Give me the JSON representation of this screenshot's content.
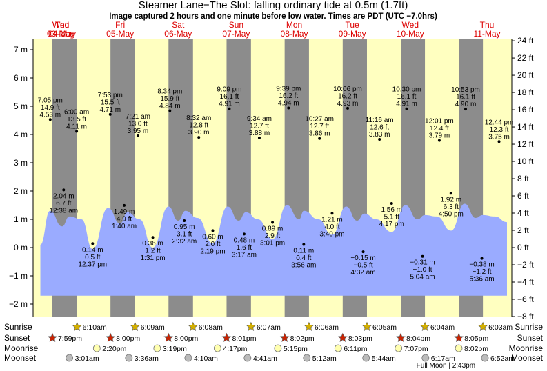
{
  "header": {
    "title": "Steamer Lane−The Slot: falling  ordinary tide at 0.5m (1.7ft)",
    "subtitle": "Image captured 2 hours and one minute before low water. Times are PDT (UTC −7.0hrs)"
  },
  "colors": {
    "day": "#ffffc0",
    "night": "#8c8c8c",
    "tide": "#9aabff",
    "date_red": "#dd0000",
    "sun": "#d4b000",
    "sunset": "#cc2200",
    "moonrise": "#ffffb0",
    "moonset": "#bbbbbb"
  },
  "chart_data": {
    "type": "area",
    "title": "Steamer Lane−The Slot: falling  ordinary tide at 0.5m (1.7ft)",
    "y_left_unit": "m",
    "y_right_unit": "ft",
    "ylim_m": [
      -2.2,
      7.4
    ],
    "yticks_left": [
      "−2 m",
      "−1 m",
      "0 m",
      "1 m",
      "2 m",
      "3 m",
      "4 m",
      "5 m",
      "6 m",
      "7 m"
    ],
    "yticks_right": [
      "−8 ft",
      "−6 ft",
      "−4 ft",
      "−2 ft",
      "0 ft",
      "2 ft",
      "4 ft",
      "6 ft",
      "8 ft",
      "10 ft",
      "12 ft",
      "14 ft",
      "16 ft",
      "18 ft",
      "20 ft",
      "22 ft",
      "24 ft"
    ],
    "x_start": "2025-05-03 12:00",
    "x_end": "2025-05-11 18:00",
    "days": [
      {
        "name": "Wed",
        "date": "03-May"
      },
      {
        "name": "Thu",
        "date": "04-May"
      },
      {
        "name": "Fri",
        "date": "05-May"
      },
      {
        "name": "Sat",
        "date": "06-May"
      },
      {
        "name": "Sun",
        "date": "07-May"
      },
      {
        "name": "Mon",
        "date": "08-May"
      },
      {
        "name": "Tue",
        "date": "09-May"
      },
      {
        "name": "Wed",
        "date": "10-May"
      },
      {
        "name": "Thu",
        "date": "11-May"
      }
    ],
    "nights": [
      {
        "start": "2025-05-03 19:59",
        "end": "2025-05-04 06:10"
      },
      {
        "start": "2025-05-04 20:00",
        "end": "2025-05-05 06:09"
      },
      {
        "start": "2025-05-05 20:00",
        "end": "2025-05-06 06:08"
      },
      {
        "start": "2025-05-06 20:01",
        "end": "2025-05-07 06:07"
      },
      {
        "start": "2025-05-07 20:02",
        "end": "2025-05-08 06:06"
      },
      {
        "start": "2025-05-08 20:03",
        "end": "2025-05-09 06:05"
      },
      {
        "start": "2025-05-09 20:04",
        "end": "2025-05-10 06:04"
      },
      {
        "start": "2025-05-10 20:05",
        "end": "2025-05-11 06:03"
      }
    ],
    "modeled_tide": [
      [
        "2025-05-03 15:00",
        0.1
      ],
      [
        "2025-05-03 19:00",
        1.3
      ],
      [
        "2025-05-04 00:00",
        0.75
      ],
      [
        "2025-05-04 03:00",
        1.1
      ],
      [
        "2025-05-04 08:00",
        1.0
      ],
      [
        "2025-05-04 12:37",
        -0.05
      ],
      [
        "2025-05-04 19:00",
        1.4
      ],
      [
        "2025-05-05 00:00",
        0.85
      ],
      [
        "2025-05-05 03:00",
        1.25
      ],
      [
        "2025-05-05 08:00",
        1.0
      ],
      [
        "2025-05-05 13:31",
        0.0
      ],
      [
        "2025-05-05 20:00",
        1.45
      ],
      [
        "2025-05-06 00:00",
        0.95
      ],
      [
        "2025-05-06 03:00",
        1.3
      ],
      [
        "2025-05-06 08:00",
        1.05
      ],
      [
        "2025-05-06 14:19",
        0.15
      ],
      [
        "2025-05-06 20:30",
        1.45
      ],
      [
        "2025-05-07 01:00",
        0.95
      ],
      [
        "2025-05-07 04:00",
        1.25
      ],
      [
        "2025-05-07 09:00",
        1.0
      ],
      [
        "2025-05-07 15:01",
        0.3
      ],
      [
        "2025-05-07 21:00",
        1.5
      ],
      [
        "2025-05-08 02:00",
        1.0
      ],
      [
        "2025-05-08 04:00",
        1.3
      ],
      [
        "2025-05-08 10:00",
        1.0
      ],
      [
        "2025-05-08 15:40",
        0.45
      ],
      [
        "2025-05-08 21:30",
        1.45
      ],
      [
        "2025-05-09 02:00",
        0.95
      ],
      [
        "2025-05-09 05:00",
        1.2
      ],
      [
        "2025-05-09 10:00",
        1.0
      ],
      [
        "2025-05-09 16:17",
        0.55
      ],
      [
        "2025-05-09 22:00",
        1.5
      ],
      [
        "2025-05-10 03:00",
        1.0
      ],
      [
        "2025-05-10 06:00",
        1.15
      ],
      [
        "2025-05-10 11:00",
        1.1
      ],
      [
        "2025-05-10 16:50",
        0.6
      ],
      [
        "2025-05-10 22:30",
        1.55
      ],
      [
        "2025-05-11 03:00",
        1.05
      ],
      [
        "2025-05-11 06:00",
        1.15
      ],
      [
        "2025-05-11 11:00",
        1.1
      ],
      [
        "2025-05-11 16:00",
        0.9
      ]
    ],
    "tide_fill_bottom_m": -1.7,
    "tide_labels": [
      {
        "t": "2025-05-03 19:05",
        "m": 4.53,
        "lines": [
          "7:05 pm",
          "14.9 ft",
          "4.53 m"
        ],
        "pos": "above"
      },
      {
        "t": "2025-05-04 00:38",
        "m": 2.04,
        "lines": [
          "2.04 m",
          "6.7 ft",
          "12:38 am"
        ],
        "pos": "below"
      },
      {
        "t": "2025-05-04 06:00",
        "m": 4.11,
        "lines": [
          "6:00 am",
          "13.5 ft",
          "4.11 m"
        ],
        "pos": "above"
      },
      {
        "t": "2025-05-04 12:37",
        "m": 0.14,
        "lines": [
          "0.14 m",
          "0.5 ft",
          "12:37 pm"
        ],
        "pos": "below"
      },
      {
        "t": "2025-05-04 19:53",
        "m": 4.71,
        "lines": [
          "7:53 pm",
          "15.5 ft",
          "4.71 m"
        ],
        "pos": "above"
      },
      {
        "t": "2025-05-05 01:40",
        "m": 1.49,
        "lines": [
          "1.49 m",
          "4.9 ft",
          "1:40 am"
        ],
        "pos": "below"
      },
      {
        "t": "2025-05-05 07:21",
        "m": 3.95,
        "lines": [
          "7:21 am",
          "13.0 ft",
          "3.95 m"
        ],
        "pos": "above"
      },
      {
        "t": "2025-05-05 13:31",
        "m": 0.36,
        "lines": [
          "0.36 m",
          "1.2 ft",
          "1:31 pm"
        ],
        "pos": "below"
      },
      {
        "t": "2025-05-05 20:34",
        "m": 4.84,
        "lines": [
          "8:34 pm",
          "15.9 ft",
          "4.84 m"
        ],
        "pos": "above"
      },
      {
        "t": "2025-05-06 02:32",
        "m": 0.95,
        "lines": [
          "0.95 m",
          "3.1 ft",
          "2:32 am"
        ],
        "pos": "below"
      },
      {
        "t": "2025-05-06 08:32",
        "m": 3.9,
        "lines": [
          "8:32 am",
          "12.8 ft",
          "3.90 m"
        ],
        "pos": "above"
      },
      {
        "t": "2025-05-06 14:19",
        "m": 0.6,
        "lines": [
          "0.60 m",
          "2.0 ft",
          "2:19 pm"
        ],
        "pos": "below"
      },
      {
        "t": "2025-05-06 21:09",
        "m": 4.91,
        "lines": [
          "9:09 pm",
          "16.1 ft",
          "4.91 m"
        ],
        "pos": "above"
      },
      {
        "t": "2025-05-07 03:17",
        "m": 0.48,
        "lines": [
          "0.48 m",
          "1.6 ft",
          "3:17 am"
        ],
        "pos": "below"
      },
      {
        "t": "2025-05-07 09:34",
        "m": 3.88,
        "lines": [
          "9:34 am",
          "12.7 ft",
          "3.88 m"
        ],
        "pos": "above"
      },
      {
        "t": "2025-05-07 15:01",
        "m": 0.89,
        "lines": [
          "0.89 m",
          "2.9 ft",
          "3:01 pm"
        ],
        "pos": "below"
      },
      {
        "t": "2025-05-07 21:39",
        "m": 4.94,
        "lines": [
          "9:39 pm",
          "16.2 ft",
          "4.94 m"
        ],
        "pos": "above"
      },
      {
        "t": "2025-05-08 03:56",
        "m": 0.11,
        "lines": [
          "0.11 m",
          "0.4 ft",
          "3:56 am"
        ],
        "pos": "below"
      },
      {
        "t": "2025-05-08 10:27",
        "m": 3.86,
        "lines": [
          "10:27 am",
          "12.7 ft",
          "3.86 m"
        ],
        "pos": "above"
      },
      {
        "t": "2025-05-08 15:40",
        "m": 1.21,
        "lines": [
          "1.21 m",
          "4.0 ft",
          "3:40 pm"
        ],
        "pos": "below"
      },
      {
        "t": "2025-05-08 22:06",
        "m": 4.93,
        "lines": [
          "10:06 pm",
          "16.2 ft",
          "4.93 m"
        ],
        "pos": "above"
      },
      {
        "t": "2025-05-09 04:32",
        "m": -0.15,
        "lines": [
          "−0.15 m",
          "−0.5 ft",
          "4:32 am"
        ],
        "pos": "below"
      },
      {
        "t": "2025-05-09 11:16",
        "m": 3.83,
        "lines": [
          "11:16 am",
          "12.6 ft",
          "3.83 m"
        ],
        "pos": "above"
      },
      {
        "t": "2025-05-09 16:17",
        "m": 1.56,
        "lines": [
          "1.56 m",
          "5.1 ft",
          "4:17 pm"
        ],
        "pos": "below"
      },
      {
        "t": "2025-05-09 22:30",
        "m": 4.91,
        "lines": [
          "10:30 pm",
          "16.1 ft",
          "4.91 m"
        ],
        "pos": "above"
      },
      {
        "t": "2025-05-10 05:04",
        "m": -0.31,
        "lines": [
          "−0.31 m",
          "−1.0 ft",
          "5:04 am"
        ],
        "pos": "below"
      },
      {
        "t": "2025-05-10 12:01",
        "m": 3.79,
        "lines": [
          "12:01 pm",
          "12.4 ft",
          "3.79 m"
        ],
        "pos": "above"
      },
      {
        "t": "2025-05-10 16:50",
        "m": 1.92,
        "lines": [
          "1.92 m",
          "6.3 ft",
          "4:50 pm"
        ],
        "pos": "below"
      },
      {
        "t": "2025-05-10 22:53",
        "m": 4.9,
        "lines": [
          "10:53 pm",
          "16.1 ft",
          "4.90 m"
        ],
        "pos": "above"
      },
      {
        "t": "2025-05-11 05:36",
        "m": -0.38,
        "lines": [
          "−0.38 m",
          "−1.2 ft",
          "5:36 am"
        ],
        "pos": "below"
      },
      {
        "t": "2025-05-11 12:44",
        "m": 3.75,
        "lines": [
          "12:44 pm",
          "12.3 ft",
          "3.75 m"
        ],
        "pos": "above"
      }
    ]
  },
  "sun_moon": {
    "row_labels": [
      "Sunrise",
      "Sunset",
      "Moonrise",
      "Moonset"
    ],
    "sunrise": [
      {
        "t": "2025-05-04 06:10",
        "label": "6:10am"
      },
      {
        "t": "2025-05-05 06:09",
        "label": "6:09am"
      },
      {
        "t": "2025-05-06 06:08",
        "label": "6:08am"
      },
      {
        "t": "2025-05-07 06:07",
        "label": "6:07am"
      },
      {
        "t": "2025-05-08 06:06",
        "label": "6:06am"
      },
      {
        "t": "2025-05-09 06:05",
        "label": "6:05am"
      },
      {
        "t": "2025-05-10 06:04",
        "label": "6:04am"
      },
      {
        "t": "2025-05-11 06:03",
        "label": "6:03am"
      }
    ],
    "sunset": [
      {
        "t": "2025-05-03 19:59",
        "label": "7:59pm"
      },
      {
        "t": "2025-05-04 20:00",
        "label": "8:00pm"
      },
      {
        "t": "2025-05-05 20:00",
        "label": "8:00pm"
      },
      {
        "t": "2025-05-06 20:01",
        "label": "8:01pm"
      },
      {
        "t": "2025-05-07 20:02",
        "label": "8:02pm"
      },
      {
        "t": "2025-05-08 20:03",
        "label": "8:03pm"
      },
      {
        "t": "2025-05-09 20:04",
        "label": "8:04pm"
      },
      {
        "t": "2025-05-10 20:05",
        "label": "8:05pm"
      }
    ],
    "moonrise": [
      {
        "t": "2025-05-04 14:20",
        "label": "2:20pm"
      },
      {
        "t": "2025-05-05 15:19",
        "label": "3:19pm"
      },
      {
        "t": "2025-05-06 16:17",
        "label": "4:17pm"
      },
      {
        "t": "2025-05-07 17:15",
        "label": "5:15pm"
      },
      {
        "t": "2025-05-08 18:11",
        "label": "6:11pm"
      },
      {
        "t": "2025-05-09 19:07",
        "label": "7:07pm"
      },
      {
        "t": "2025-05-10 20:02",
        "label": "8:02pm"
      }
    ],
    "moonset": [
      {
        "t": "2025-05-04 03:01",
        "label": "3:01am"
      },
      {
        "t": "2025-05-05 03:36",
        "label": "3:36am"
      },
      {
        "t": "2025-05-06 04:10",
        "label": "4:10am"
      },
      {
        "t": "2025-05-07 04:41",
        "label": "4:41am"
      },
      {
        "t": "2025-05-08 05:12",
        "label": "5:12am"
      },
      {
        "t": "2025-05-09 05:44",
        "label": "5:44am"
      },
      {
        "t": "2025-05-10 06:17",
        "label": "6:17am"
      },
      {
        "t": "2025-05-11 06:52",
        "label": "6:52am"
      }
    ],
    "full_moon": {
      "t": "2025-05-10 14:43",
      "label": "Full Moon | 2:43pm"
    }
  }
}
